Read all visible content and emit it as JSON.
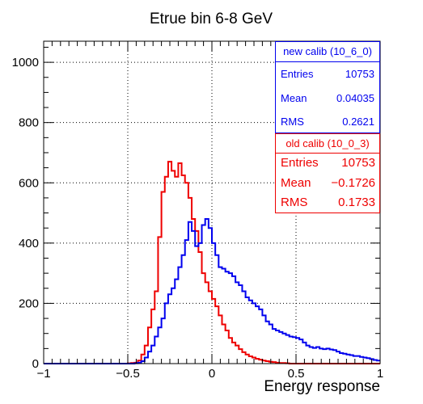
{
  "chart_data": {
    "type": "histogram",
    "title": "Etrue bin 6-8 GeV",
    "xlabel": "Energy response",
    "ylabel": "",
    "xlim": [
      -1,
      1
    ],
    "ylim": [
      0,
      1070
    ],
    "x_ticks": [
      "−1",
      "−0.5",
      "0",
      "0.5",
      "1"
    ],
    "y_ticks": [
      "0",
      "200",
      "400",
      "600",
      "800",
      "1000"
    ],
    "grid": true,
    "bins": {
      "n": 100,
      "min": -1,
      "max": 1
    },
    "series": [
      {
        "name": "old calib (10_0_3)",
        "color": "#ee0000",
        "values": [
          0,
          0,
          0,
          0,
          0,
          0,
          0,
          0,
          0,
          0,
          0,
          0,
          0,
          0,
          0,
          0,
          0,
          0,
          0,
          0,
          0,
          0,
          0,
          0,
          0,
          1,
          2,
          3,
          10,
          30,
          60,
          120,
          180,
          240,
          420,
          570,
          620,
          670,
          640,
          620,
          665,
          625,
          600,
          550,
          480,
          440,
          370,
          300,
          270,
          240,
          215,
          190,
          160,
          130,
          110,
          85,
          70,
          60,
          48,
          38,
          30,
          24,
          20,
          16,
          13,
          10,
          8,
          6,
          5,
          3,
          2,
          2,
          1,
          0,
          0,
          0,
          0,
          0,
          0,
          0,
          0,
          0,
          0,
          0,
          0,
          0,
          0,
          0,
          0,
          0,
          0,
          0,
          0,
          0,
          0,
          0,
          0,
          0,
          0,
          0
        ]
      },
      {
        "name": "new calib (10_6_0)",
        "color": "#0000ee",
        "values": [
          0,
          0,
          0,
          0,
          0,
          0,
          0,
          0,
          0,
          0,
          0,
          0,
          0,
          0,
          0,
          0,
          0,
          0,
          0,
          0,
          0,
          0,
          0,
          0,
          0,
          0,
          0,
          1,
          3,
          8,
          20,
          40,
          60,
          90,
          120,
          150,
          200,
          230,
          250,
          280,
          320,
          360,
          410,
          470,
          440,
          390,
          400,
          460,
          480,
          450,
          400,
          360,
          320,
          315,
          305,
          300,
          290,
          270,
          260,
          240,
          220,
          210,
          200,
          190,
          180,
          160,
          140,
          130,
          115,
          110,
          105,
          100,
          95,
          90,
          88,
          85,
          80,
          70,
          60,
          55,
          52,
          55,
          50,
          48,
          50,
          47,
          45,
          40,
          35,
          33,
          30,
          28,
          25,
          25,
          22,
          20,
          18,
          15,
          12,
          10
        ]
      }
    ],
    "legend": "top-right"
  },
  "stats": {
    "new": {
      "header": "new calib (10_6_0)",
      "entries_label": "Entries",
      "entries": "10753",
      "mean_label": "Mean",
      "mean": "0.04035",
      "rms_label": "RMS",
      "rms": "0.2621"
    },
    "old": {
      "header": "old calib (10_0_3)",
      "entries_label": "Entries",
      "entries": "10753",
      "mean_label": "Mean",
      "mean": "−0.1726",
      "rms_label": "RMS",
      "rms": "0.1733"
    }
  }
}
